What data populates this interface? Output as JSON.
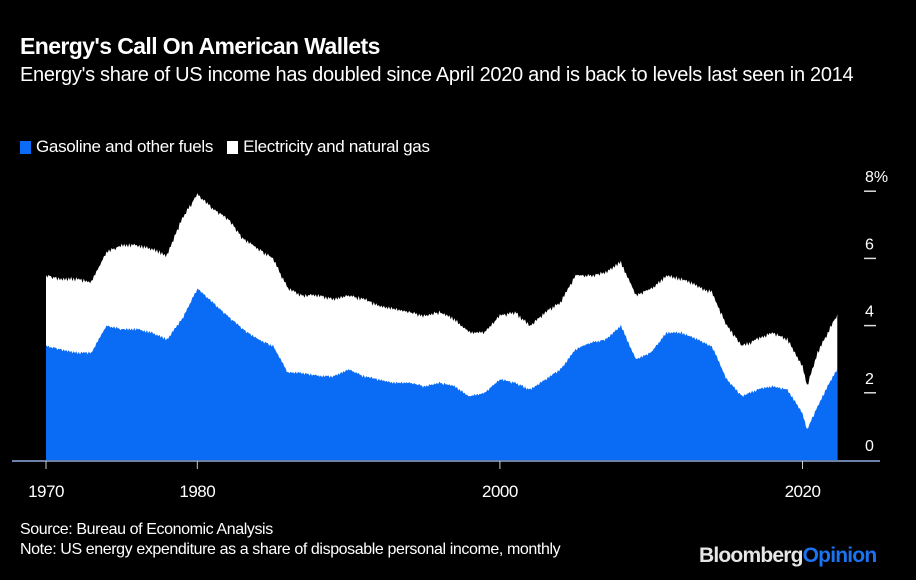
{
  "header": {
    "title": "Energy's Call On American Wallets",
    "subtitle": "Energy's share of US income has doubled since April 2020 and is back to levels last seen in 2014"
  },
  "colors": {
    "background": "#000000",
    "gasoline": "#0a6cf5",
    "electricity": "#ffffff",
    "axis": "#c8c8c8"
  },
  "chart_data": {
    "type": "area",
    "stacked": true,
    "title": "Energy's Call On American Wallets",
    "xlabel": "",
    "ylabel": "",
    "x_ticks": [
      1970,
      1980,
      2000,
      2020
    ],
    "x_tick_labels": [
      "1970",
      "1980",
      "2000",
      "2020"
    ],
    "y_ticks": [
      0,
      2,
      4,
      6,
      8
    ],
    "y_tick_labels": [
      "0",
      "2",
      "4",
      "6",
      "8%"
    ],
    "xlim": [
      1969.2,
      2023.6
    ],
    "ylim": [
      0,
      8.1
    ],
    "legend_position": "top-left",
    "grid": false,
    "x": [
      1970,
      1971,
      1972,
      1973,
      1974,
      1975,
      1976,
      1977,
      1978,
      1979,
      1980,
      1981,
      1982,
      1983,
      1984,
      1985,
      1986,
      1987,
      1988,
      1989,
      1990,
      1991,
      1992,
      1993,
      1994,
      1995,
      1996,
      1997,
      1998,
      1999,
      2000,
      2001,
      2002,
      2003,
      2004,
      2005,
      2006,
      2007,
      2008,
      2009,
      2010,
      2011,
      2012,
      2013,
      2014,
      2015,
      2016,
      2017,
      2018,
      2019,
      2020,
      2020.3,
      2021,
      2022,
      2022.3
    ],
    "series": [
      {
        "name": "Gasoline and other fuels",
        "values": [
          3.4,
          3.3,
          3.2,
          3.2,
          4.0,
          3.9,
          3.9,
          3.8,
          3.6,
          4.2,
          5.1,
          4.7,
          4.3,
          3.9,
          3.6,
          3.4,
          2.6,
          2.6,
          2.5,
          2.5,
          2.7,
          2.5,
          2.4,
          2.3,
          2.3,
          2.2,
          2.3,
          2.2,
          1.9,
          2.0,
          2.4,
          2.3,
          2.1,
          2.4,
          2.7,
          3.3,
          3.5,
          3.6,
          4.0,
          3.0,
          3.2,
          3.8,
          3.8,
          3.6,
          3.4,
          2.4,
          1.9,
          2.1,
          2.2,
          2.1,
          1.4,
          0.9,
          1.6,
          2.5,
          2.7
        ],
        "electricity_values": [
          2.1,
          2.1,
          2.2,
          2.1,
          2.2,
          2.5,
          2.5,
          2.5,
          2.5,
          3.0,
          2.8,
          2.8,
          2.9,
          2.7,
          2.7,
          2.6,
          2.5,
          2.3,
          2.4,
          2.3,
          2.2,
          2.3,
          2.2,
          2.2,
          2.1,
          2.1,
          2.1,
          2.0,
          1.9,
          1.8,
          1.9,
          2.1,
          1.9,
          2.0,
          2.0,
          2.2,
          2.0,
          2.0,
          1.9,
          1.9,
          1.9,
          1.7,
          1.6,
          1.6,
          1.6,
          1.6,
          1.5,
          1.5,
          1.6,
          1.5,
          1.4,
          1.3,
          1.6,
          1.6,
          1.6
        ]
      },
      {
        "name": "Electricity and natural gas",
        "values": [
          2.1,
          2.1,
          2.2,
          2.1,
          2.2,
          2.5,
          2.5,
          2.5,
          2.5,
          3.0,
          2.8,
          2.8,
          2.9,
          2.7,
          2.7,
          2.6,
          2.5,
          2.3,
          2.4,
          2.3,
          2.2,
          2.3,
          2.2,
          2.2,
          2.1,
          2.1,
          2.1,
          2.0,
          1.9,
          1.8,
          1.9,
          2.1,
          1.9,
          2.0,
          2.0,
          2.2,
          2.0,
          2.0,
          1.9,
          1.9,
          1.9,
          1.7,
          1.6,
          1.6,
          1.6,
          1.6,
          1.5,
          1.5,
          1.6,
          1.5,
          1.4,
          1.3,
          1.6,
          1.6,
          1.6
        ]
      }
    ],
    "source": "Source: Bureau of Economic Analysis",
    "note": "Note: US energy expenditure as a share of disposable personal income, monthly"
  },
  "legend": [
    {
      "label": "Gasoline and other fuels",
      "color": "#0a6cf5"
    },
    {
      "label": "Electricity and natural gas",
      "color": "#ffffff"
    }
  ],
  "footer": {
    "source": "Source: Bureau of Economic Analysis",
    "note": "Note: US energy expenditure as a share of disposable personal income, monthly"
  },
  "brand": {
    "part1": "Bloomberg",
    "part2": "Opinion"
  }
}
